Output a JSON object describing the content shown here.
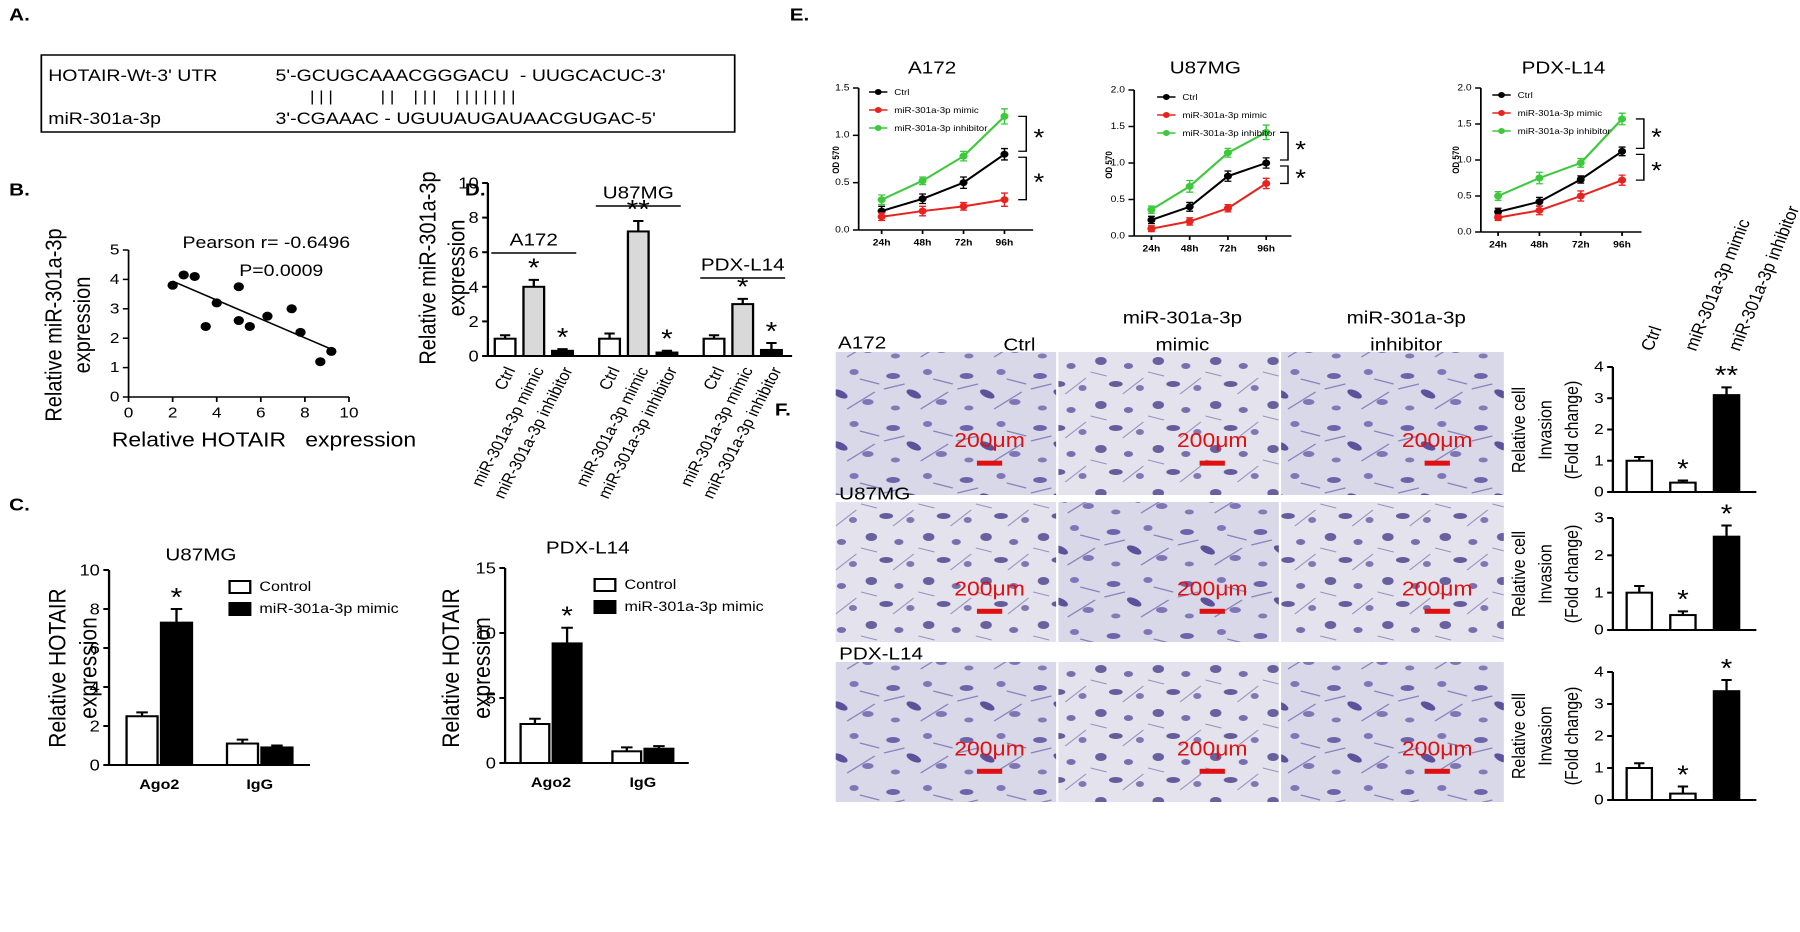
{
  "panel_labels": [
    "A.",
    "B.",
    "C.",
    "D.",
    "E.",
    "F."
  ],
  "alignment": {
    "target_name": "HOTAIR-Wt-3' UTR",
    "target_sequence": "5'-GCUGCAAACGGGACU  - UUGCACUC-3'",
    "pairing": "| | |          | |    | | |    | | | | | | |",
    "mirna_name": "miR-301a-3p",
    "mirna_sequence": "3'-CGAAAC - UGUUAUGAUAACGUGAC-5'"
  },
  "chart_data": [
    {
      "type": "scatter",
      "xlabel": "Relative HOTAIR   expression",
      "ylabel": [
        "Relative miR-301a-3p",
        "expression"
      ],
      "annotations": [
        "Pearson r= -0.6496",
        "P=0.0009"
      ],
      "x": [
        2,
        2.5,
        3,
        3.5,
        4,
        5,
        5,
        5.5,
        6.3,
        7.4,
        7.8,
        8.7,
        9.2
      ],
      "values": [
        3.8,
        4.15,
        4.1,
        2.4,
        3.2,
        3.75,
        2.6,
        2.4,
        2.75,
        3.0,
        2.2,
        1.2,
        1.55
      ],
      "color": "#000000",
      "xlim": [
        0,
        10
      ],
      "xticks": [
        0,
        2,
        4,
        6,
        8,
        10
      ],
      "ylim": [
        0,
        5
      ],
      "yticks": [
        0,
        1,
        2,
        3,
        4,
        5
      ]
    },
    {
      "type": "bar",
      "title": "U87MG",
      "ylabel": [
        "Relative HOTAIR",
        "expression"
      ],
      "categories": [
        "Ago2",
        "IgG"
      ],
      "series": [
        {
          "name": "Control",
          "color": "#ffffff",
          "values": [
            2.5,
            1.1
          ],
          "errors": [
            0.2,
            0.2
          ],
          "significance": [
            null,
            null
          ]
        },
        {
          "name": "miR-301a-3p mimic",
          "color": "#000000",
          "values": [
            7.3,
            0.9
          ],
          "errors": [
            0.7,
            0.1
          ],
          "significance": [
            "*",
            null
          ]
        }
      ],
      "ylim": [
        0,
        10
      ],
      "yticks": [
        0,
        2,
        4,
        6,
        8,
        10
      ]
    },
    {
      "type": "bar",
      "title": "PDX-L14",
      "ylabel": [
        "Relative HOTAIR",
        "expression"
      ],
      "categories": [
        "Ago2",
        "IgG"
      ],
      "series": [
        {
          "name": "Control",
          "color": "#ffffff",
          "values": [
            3.0,
            0.9
          ],
          "errors": [
            0.4,
            0.3
          ],
          "significance": [
            null,
            null
          ]
        },
        {
          "name": "miR-301a-3p mimic",
          "color": "#000000",
          "values": [
            9.2,
            1.1
          ],
          "errors": [
            1.2,
            0.2
          ],
          "significance": [
            "*",
            null
          ]
        }
      ],
      "ylim": [
        0,
        15
      ],
      "yticks": [
        0,
        5,
        10,
        15
      ]
    },
    {
      "type": "bar",
      "ylabel": [
        "Relative miR-301a-3p",
        "expression"
      ],
      "groups": [
        "A172",
        "U87MG",
        "PDX-L14"
      ],
      "categories": [
        "Ctrl",
        "miR-301a-3p mimic",
        "miR-301a-3p inhibitor",
        "Ctrl",
        "miR-301a-3p mimic",
        "miR-301a-3p inhibitor",
        "Ctrl",
        "miR-301a-3p mimic",
        "miR-301a-3p inhibitor"
      ],
      "values": [
        1,
        4.0,
        0.3,
        1,
        7.2,
        0.2,
        1,
        3.0,
        0.35
      ],
      "errors": [
        0.2,
        0.4,
        0.1,
        0.3,
        0.6,
        0.1,
        0.2,
        0.3,
        0.4
      ],
      "colors": [
        "#ffffff",
        "#d9d9d9",
        "#000000",
        "#ffffff",
        "#d9d9d9",
        "#000000",
        "#ffffff",
        "#d9d9d9",
        "#000000"
      ],
      "significance": [
        null,
        "*",
        "*",
        null,
        "**",
        "*",
        null,
        "*",
        "*"
      ],
      "ylim": [
        0,
        10
      ],
      "yticks": [
        0,
        2,
        4,
        6,
        8,
        10
      ]
    },
    {
      "type": "line",
      "title": "A172",
      "ylabel": "OD 570",
      "categories": [
        "24h",
        "48h",
        "72h",
        "96h"
      ],
      "series": [
        {
          "name": "Ctrl",
          "color": "#000000",
          "values": [
            0.2,
            0.33,
            0.5,
            0.8
          ],
          "errors": [
            0.05,
            0.05,
            0.06,
            0.06
          ]
        },
        {
          "name": "miR-301a-3p mimic",
          "color": "#e8231f",
          "values": [
            0.14,
            0.2,
            0.25,
            0.32
          ],
          "errors": [
            0.04,
            0.05,
            0.04,
            0.07
          ]
        },
        {
          "name": "miR-301a-3p inhibitor",
          "color": "#3cc93c",
          "values": [
            0.32,
            0.52,
            0.78,
            1.2
          ],
          "errors": [
            0.05,
            0.04,
            0.05,
            0.08
          ]
        }
      ],
      "significance": [
        "*",
        "*"
      ],
      "ylim": [
        0,
        1.5
      ],
      "yticks": [
        {
          "value": 0,
          "label": "0.0"
        },
        0.5,
        {
          "value": 1,
          "label": "1.0"
        },
        1.5
      ]
    },
    {
      "type": "line",
      "title": "U87MG",
      "ylabel": "OD 570",
      "categories": [
        "24h",
        "48h",
        "72h",
        "96h"
      ],
      "series": [
        {
          "name": "Ctrl",
          "color": "#000000",
          "values": [
            0.22,
            0.4,
            0.82,
            1.0
          ],
          "errors": [
            0.05,
            0.06,
            0.07,
            0.07
          ]
        },
        {
          "name": "miR-301a-3p mimic",
          "color": "#e8231f",
          "values": [
            0.1,
            0.2,
            0.38,
            0.72
          ],
          "errors": [
            0.04,
            0.05,
            0.05,
            0.07
          ]
        },
        {
          "name": "miR-301a-3p inhibitor",
          "color": "#3cc93c",
          "values": [
            0.36,
            0.68,
            1.14,
            1.42
          ],
          "errors": [
            0.05,
            0.08,
            0.06,
            0.1
          ]
        }
      ],
      "significance": [
        "*",
        "*"
      ],
      "ylim": [
        0,
        2
      ],
      "yticks": [
        {
          "value": 0,
          "label": "0.0"
        },
        0.5,
        {
          "value": 1,
          "label": "1.0"
        },
        1.5,
        {
          "value": 2,
          "label": "2.0"
        }
      ]
    },
    {
      "type": "line",
      "title": "PDX-L14",
      "ylabel": "OD 570",
      "categories": [
        "24h",
        "48h",
        "72h",
        "96h"
      ],
      "series": [
        {
          "name": "Ctrl",
          "color": "#000000",
          "values": [
            0.28,
            0.42,
            0.73,
            1.12
          ],
          "errors": [
            0.05,
            0.06,
            0.05,
            0.06
          ]
        },
        {
          "name": "miR-301a-3p mimic",
          "color": "#e8231f",
          "values": [
            0.2,
            0.3,
            0.5,
            0.72
          ],
          "errors": [
            0.04,
            0.06,
            0.07,
            0.07
          ]
        },
        {
          "name": "miR-301a-3p inhibitor",
          "color": "#3cc93c",
          "values": [
            0.5,
            0.75,
            0.96,
            1.57
          ],
          "errors": [
            0.06,
            0.08,
            0.06,
            0.08
          ]
        }
      ],
      "significance": [
        "*",
        "*"
      ],
      "ylim": [
        0,
        2
      ],
      "yticks": [
        {
          "value": 0,
          "label": "0.0"
        },
        0.5,
        {
          "value": 1,
          "label": "1.0"
        },
        1.5,
        {
          "value": 2,
          "label": "2.0"
        }
      ]
    },
    {
      "type": "bar",
      "ylabel": [
        "Relative cell",
        "Invasion",
        "(Fold change)"
      ],
      "categories": [
        "Ctrl",
        "miR-301a-3p mimic",
        "miR-301a-3p inhibitor"
      ],
      "values": [
        1,
        0.3,
        3.1
      ],
      "errors": [
        0.12,
        0.07,
        0.25
      ],
      "colors": [
        "#ffffff",
        "#ffffff",
        "#000000"
      ],
      "significance": [
        null,
        "*",
        "**"
      ],
      "ylim": [
        0,
        4
      ],
      "yticks": [
        0,
        1,
        2,
        3,
        4
      ]
    },
    {
      "type": "bar",
      "ylabel": [
        "Relative cell",
        "Invasion",
        "(Fold change)"
      ],
      "values": [
        1,
        0.4,
        2.5
      ],
      "errors": [
        0.18,
        0.1,
        0.3
      ],
      "colors": [
        "#ffffff",
        "#ffffff",
        "#000000"
      ],
      "significance": [
        null,
        "*",
        "*"
      ],
      "ylim": [
        0,
        3
      ],
      "yticks": [
        0,
        1,
        2,
        3
      ]
    },
    {
      "type": "bar",
      "ylabel": [
        "Relative cell",
        "Invasion",
        "(Fold change)"
      ],
      "values": [
        1,
        0.2,
        3.4
      ],
      "errors": [
        0.15,
        0.22,
        0.35
      ],
      "colors": [
        "#ffffff",
        "#ffffff",
        "#000000"
      ],
      "significance": [
        null,
        "*",
        "*"
      ],
      "ylim": [
        0,
        4
      ],
      "yticks": [
        0,
        1,
        2,
        3,
        4
      ]
    }
  ],
  "micrographs": {
    "rows": [
      "A172",
      "U87MG",
      "PDX-L14"
    ],
    "columns": [
      [
        "Ctrl"
      ],
      [
        "miR-301a-3p",
        "mimic"
      ],
      [
        "miR-301a-3p",
        "inhibitor"
      ]
    ],
    "scale_bar": "200μm"
  }
}
